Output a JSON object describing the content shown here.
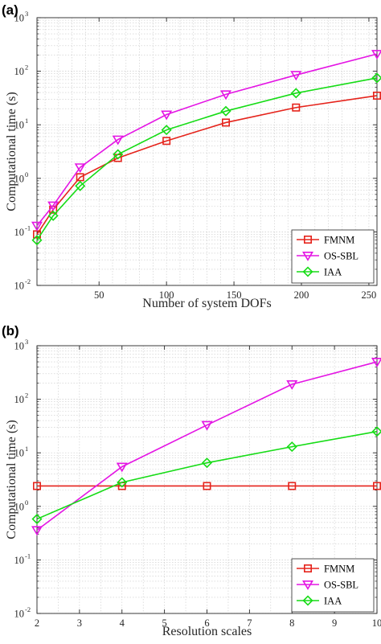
{
  "colors": {
    "FMNM": "#e5231b",
    "OS-SBL": "#e415e4",
    "IAA": "#16dc16",
    "grid": "#c9c9c9",
    "axis": "#262626"
  },
  "chart_data": [
    {
      "panel_label": "(a)",
      "type": "line",
      "xlabel": "Number of system DOFs",
      "ylabel": "Computational time (s)",
      "xlim": [
        4,
        256
      ],
      "ylim": [
        0.01,
        1000
      ],
      "yscale": "log",
      "grid": true,
      "legend_position": "bottom-right",
      "xticks": [
        50,
        100,
        150,
        200,
        250
      ],
      "ytick_exponents": [
        -2,
        -1,
        0,
        1,
        2,
        3
      ],
      "series": [
        {
          "name": "FMNM",
          "marker": "square",
          "x": [
            4,
            16,
            36,
            64,
            100,
            144,
            196,
            256
          ],
          "y": [
            0.09,
            0.26,
            1.05,
            2.4,
            5.0,
            11.0,
            21.0,
            35.0
          ]
        },
        {
          "name": "OS-SBL",
          "marker": "triangle-down",
          "x": [
            4,
            16,
            36,
            64,
            100,
            144,
            196,
            256
          ],
          "y": [
            0.13,
            0.31,
            1.6,
            5.3,
            15.5,
            37.0,
            85.0,
            210.0
          ]
        },
        {
          "name": "IAA",
          "marker": "diamond",
          "x": [
            4,
            16,
            36,
            64,
            100,
            144,
            196,
            256
          ],
          "y": [
            0.07,
            0.2,
            0.72,
            2.8,
            8.0,
            18.0,
            39.0,
            75.0
          ]
        }
      ]
    },
    {
      "panel_label": "(b)",
      "type": "line",
      "xlabel": "Resolution scales",
      "ylabel": "Computational time (s)",
      "xlim": [
        2,
        10
      ],
      "ylim": [
        0.01,
        1000
      ],
      "yscale": "log",
      "grid": true,
      "legend_position": "bottom-right",
      "xticks": [
        2,
        3,
        4,
        5,
        6,
        7,
        8,
        9,
        10
      ],
      "ytick_exponents": [
        -2,
        -1,
        0,
        1,
        2,
        3
      ],
      "series": [
        {
          "name": "FMNM",
          "marker": "square",
          "x": [
            2,
            4,
            6,
            8,
            10
          ],
          "y": [
            2.4,
            2.4,
            2.4,
            2.4,
            2.4
          ]
        },
        {
          "name": "OS-SBL",
          "marker": "triangle-down",
          "x": [
            2,
            4,
            6,
            8,
            10
          ],
          "y": [
            0.36,
            5.5,
            33.0,
            190.0,
            500.0
          ]
        },
        {
          "name": "IAA",
          "marker": "diamond",
          "x": [
            2,
            4,
            6,
            8,
            10
          ],
          "y": [
            0.58,
            2.8,
            6.5,
            13.0,
            25.0
          ]
        }
      ]
    }
  ]
}
